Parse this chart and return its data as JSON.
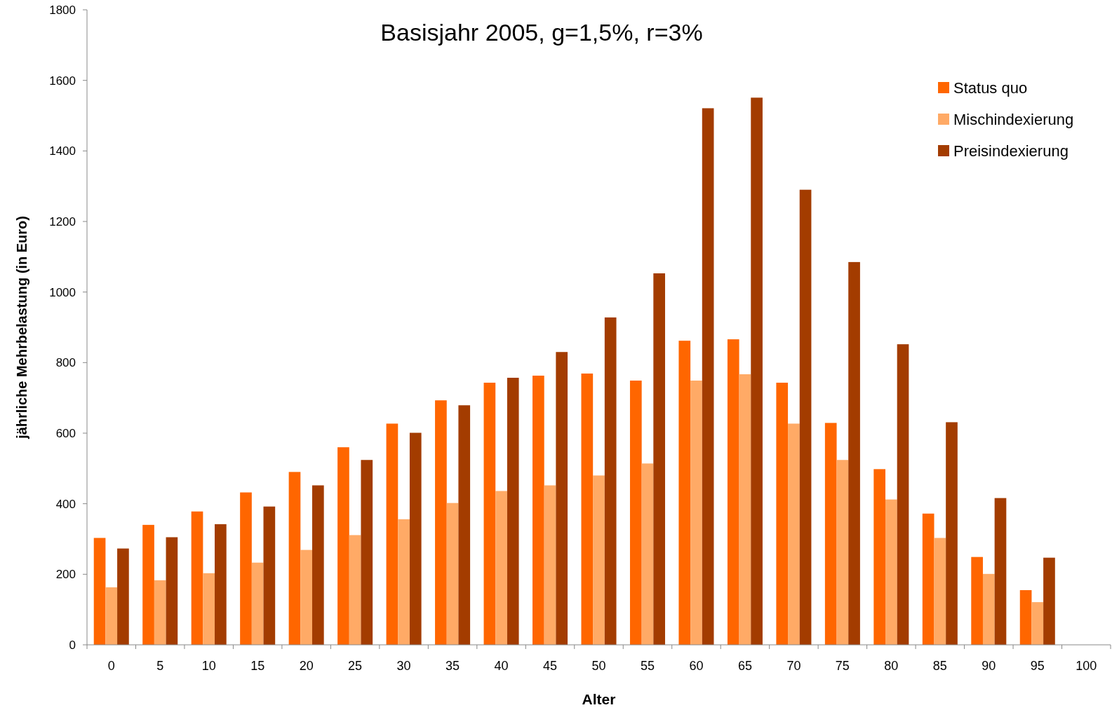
{
  "chart_data": {
    "type": "bar",
    "title": "Basisjahr 2005, g=1,5%, r=3%",
    "xlabel": "Alter",
    "ylabel": "jährliche Mehrbelastung (in Euro)",
    "categories": [
      "0",
      "5",
      "10",
      "15",
      "20",
      "25",
      "30",
      "35",
      "40",
      "45",
      "50",
      "55",
      "60",
      "65",
      "70",
      "75",
      "80",
      "85",
      "90",
      "95",
      "100"
    ],
    "series": [
      {
        "name": "Status quo",
        "color": "#ff6600",
        "values": [
          303,
          340,
          378,
          432,
          490,
          560,
          627,
          693,
          743,
          763,
          769,
          749,
          862,
          866,
          743,
          629,
          498,
          372,
          249,
          155,
          null
        ]
      },
      {
        "name": "Mischindexierung",
        "color": "#ffaa66",
        "values": [
          163,
          183,
          203,
          233,
          269,
          311,
          356,
          402,
          436,
          452,
          480,
          514,
          749,
          767,
          627,
          524,
          412,
          303,
          201,
          121,
          null
        ]
      },
      {
        "name": "Preisindexierung",
        "color": "#a33c00",
        "values": [
          273,
          305,
          342,
          392,
          452,
          524,
          601,
          679,
          757,
          830,
          928,
          1053,
          1521,
          1551,
          1290,
          1085,
          852,
          631,
          416,
          247,
          null
        ]
      }
    ],
    "ylim": [
      0,
      1800
    ],
    "yticks": [
      0,
      200,
      400,
      600,
      800,
      1000,
      1200,
      1400,
      1600,
      1800
    ],
    "grid": false,
    "legend": "top right"
  }
}
